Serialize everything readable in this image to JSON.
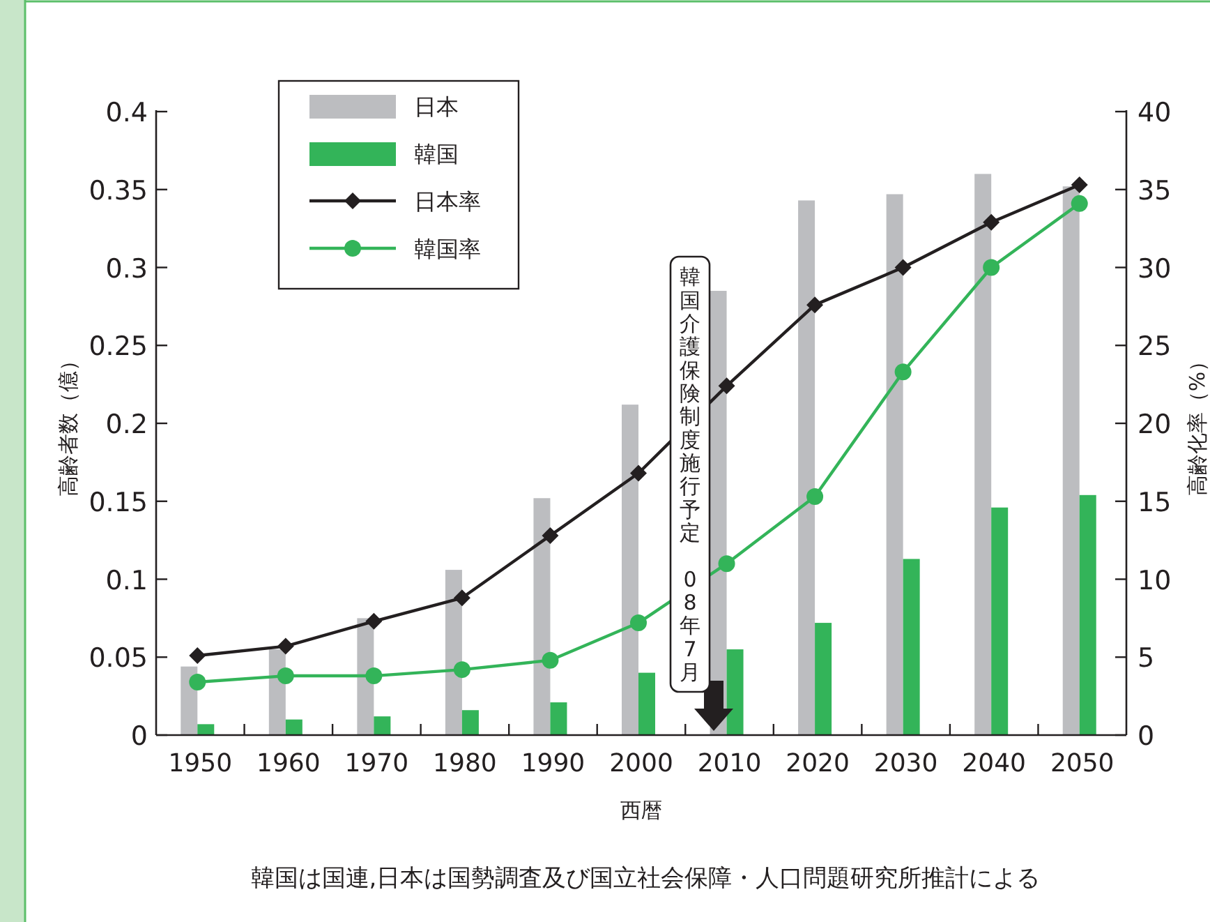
{
  "chart_data": {
    "type": "bar",
    "categories": [
      "1950",
      "1960",
      "1970",
      "1980",
      "1990",
      "2000",
      "2010",
      "2020",
      "2030",
      "2040",
      "2050"
    ],
    "series": [
      {
        "name": "日本",
        "color": "#bcbdc0",
        "values": [
          0.044,
          0.055,
          0.075,
          0.106,
          0.152,
          0.212,
          0.285,
          0.343,
          0.347,
          0.36,
          0.352
        ]
      },
      {
        "name": "韓国",
        "color": "#33b459",
        "values": [
          0.007,
          0.01,
          0.012,
          0.016,
          0.021,
          0.04,
          0.055,
          0.072,
          0.113,
          0.146,
          0.154
        ]
      },
      {
        "name": "日本率",
        "type": "line",
        "axis": "y2",
        "color": "#231f20",
        "marker": "diamond",
        "values": [
          5.1,
          5.7,
          7.3,
          8.8,
          12.8,
          16.8,
          22.4,
          27.6,
          30.0,
          32.9,
          35.3
        ]
      },
      {
        "name": "韓国率",
        "type": "line",
        "axis": "y2",
        "color": "#33b459",
        "marker": "circle",
        "values": [
          3.4,
          3.8,
          3.8,
          4.2,
          4.8,
          7.2,
          11.0,
          15.3,
          23.3,
          30.0,
          34.1
        ]
      }
    ],
    "xlabel": "西暦",
    "ylabel": "高齢者数（億）",
    "y2label": "高齢化率（%）",
    "ylim": [
      0,
      0.4
    ],
    "yticks": [
      0,
      0.05,
      0.1,
      0.15,
      0.2,
      0.25,
      0.3,
      0.35,
      0.4
    ],
    "y2lim": [
      0,
      40
    ],
    "y2ticks": [
      0,
      5,
      10,
      15,
      20,
      25,
      30,
      35,
      40
    ],
    "annotations": [
      "韓国介護保険制度施行予定 08年7月",
      "韓国は国連,日本は国勢調査及び国立社会保障・人口問題研究所推計による"
    ],
    "legend": "top left",
    "grid": false
  }
}
